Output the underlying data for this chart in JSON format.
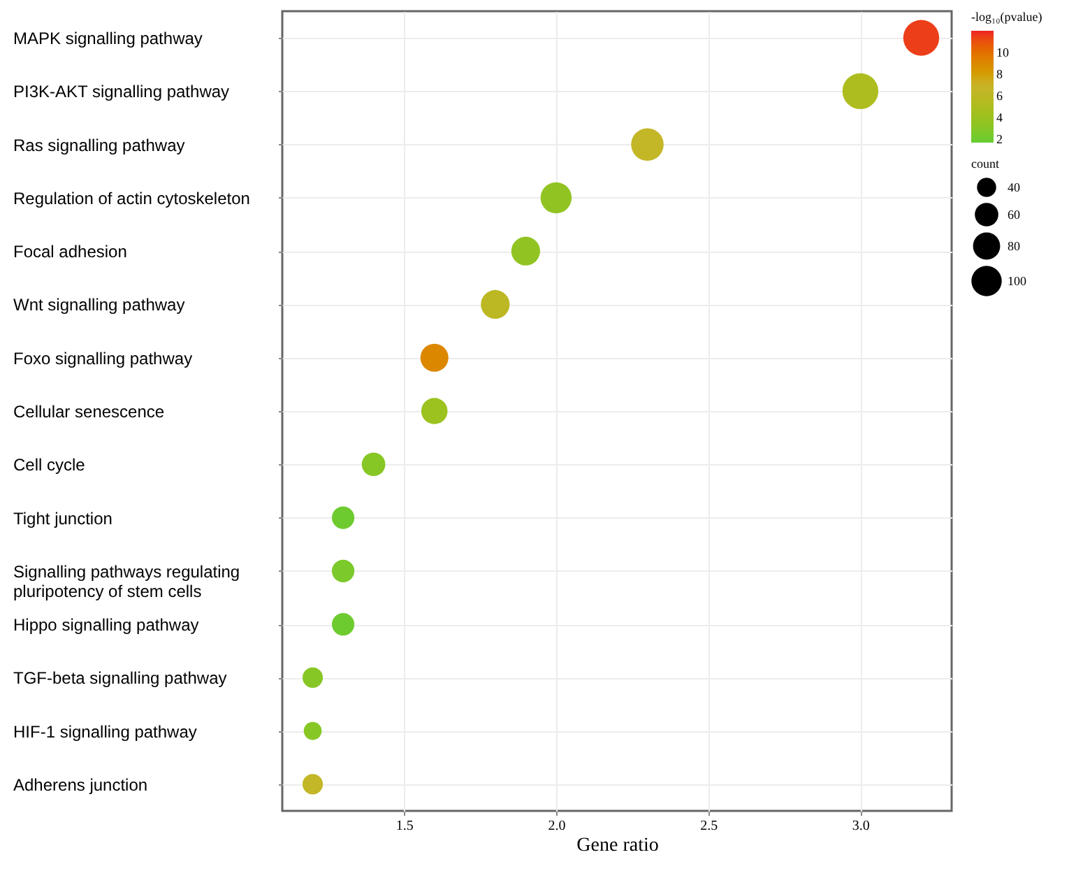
{
  "chart_data": {
    "type": "bubble",
    "xlabel": "Gene ratio",
    "legend_title": "count",
    "clabel": "-log₁₀(pvalue)",
    "categories": [
      "MAPK signalling pathway",
      "PI3K-AKT signalling pathway",
      "Ras signalling pathway",
      "Regulation of actin cytoskeleton",
      "Focal adhesion",
      "Wnt signalling pathway",
      "Foxo signalling pathway",
      "Cellular senescence",
      "Cell cycle",
      "Tight junction",
      "Signalling pathways regulating pluripotency of stem cells",
      "Hippo signalling pathway",
      "TGF-beta signalling pathway",
      "HIF-1 signalling pathway",
      "Adherens junction"
    ],
    "values": [
      3.2,
      3.0,
      2.3,
      2.0,
      1.9,
      1.8,
      1.6,
      1.6,
      1.4,
      1.3,
      1.3,
      1.3,
      1.2,
      1.2,
      1.2
    ],
    "sizes": [
      140,
      140,
      115,
      105,
      90,
      90,
      85,
      75,
      60,
      55,
      55,
      55,
      45,
      35,
      45
    ],
    "cvalues": [
      11.5,
      5,
      6.5,
      3.5,
      3.5,
      6,
      9,
      4,
      3,
      2,
      2.5,
      2,
      3,
      3,
      6.5
    ],
    "size_legend": [
      40,
      60,
      80,
      100
    ],
    "clim": [
      1.7,
      12
    ],
    "cticks": [
      2,
      4,
      6,
      8,
      10
    ],
    "xlim": [
      1.1,
      3.3
    ],
    "xticks": [
      {
        "value": 1.5,
        "label": "1.5"
      },
      {
        "value": 2,
        "label": "2.0"
      },
      {
        "value": 2.5,
        "label": "2.5"
      },
      {
        "value": 3,
        "label": "3.0"
      }
    ],
    "orientation": "horizontal",
    "grid": true
  }
}
